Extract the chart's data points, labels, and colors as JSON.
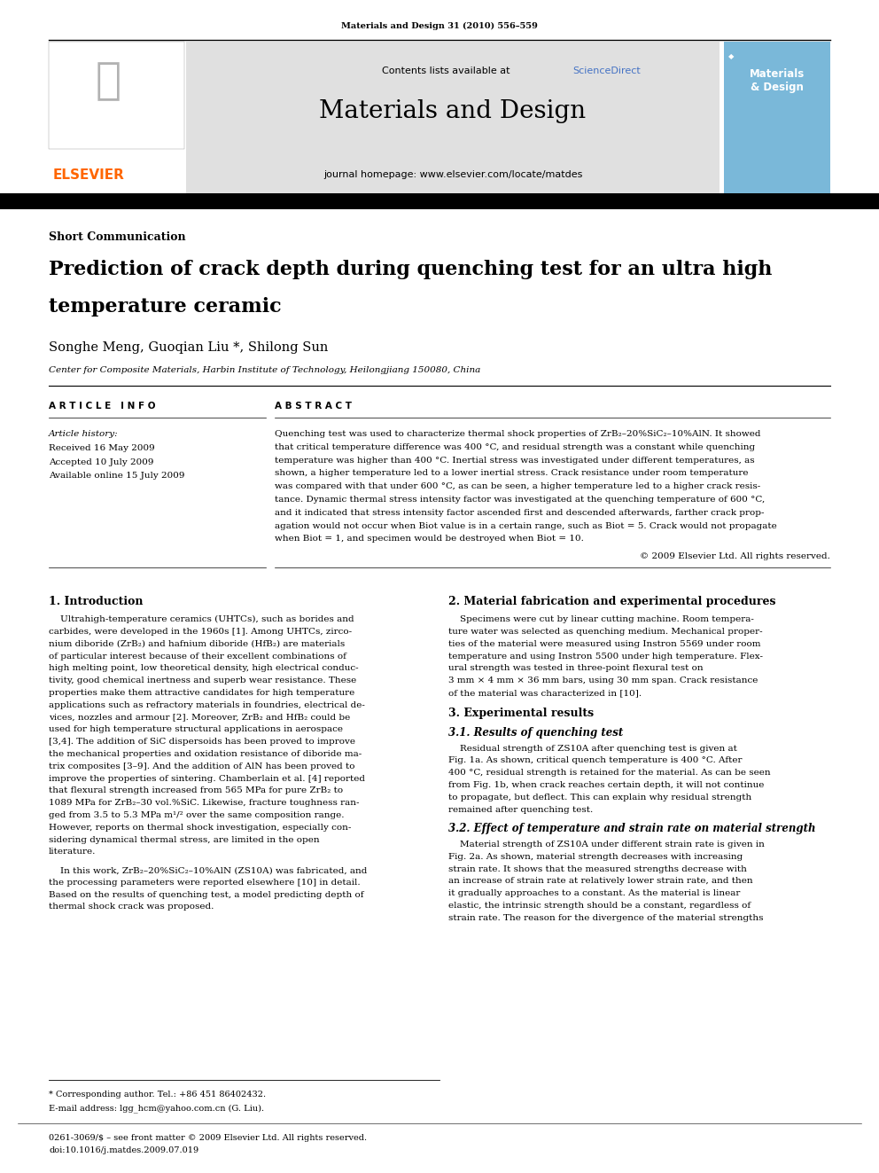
{
  "page_width": 9.92,
  "page_height": 13.23,
  "dpi": 100,
  "bg_color": "#ffffff",
  "header_journal": "Materials and Design 31 (2010) 556–559",
  "header_contents": "Contents lists available at ",
  "header_sciencedirect": "ScienceDirect",
  "header_journal_name": "Materials and Design",
  "header_homepage": "journal homepage: www.elsevier.com/locate/matdes",
  "article_type": "Short Communication",
  "title_line1": "Prediction of crack depth during quenching test for an ultra high",
  "title_line2": "temperature ceramic",
  "authors": "Songhe Meng, Guoqian Liu *, Shilong Sun",
  "affiliation": "Center for Composite Materials, Harbin Institute of Technology, Heilongjiang 150080, China",
  "article_info_header": "A R T I C L E   I N F O",
  "article_history_label": "Article history:",
  "received": "Received 16 May 2009",
  "accepted": "Accepted 10 July 2009",
  "available": "Available online 15 July 2009",
  "abstract_header": "A B S T R A C T",
  "abstract_lines": [
    "Quenching test was used to characterize thermal shock properties of ZrB₂–20%SiC₂–10%AlN. It showed",
    "that critical temperature difference was 400 °C, and residual strength was a constant while quenching",
    "temperature was higher than 400 °C. Inertial stress was investigated under different temperatures, as",
    "shown, a higher temperature led to a lower inertial stress. Crack resistance under room temperature",
    "was compared with that under 600 °C, as can be seen, a higher temperature led to a higher crack resis-",
    "tance. Dynamic thermal stress intensity factor was investigated at the quenching temperature of 600 °C,",
    "and it indicated that stress intensity factor ascended first and descended afterwards, farther crack prop-",
    "agation would not occur when Biot value is in a certain range, such as Biot = 5. Crack would not propagate",
    "when Biot = 1, and specimen would be destroyed when Biot = 10."
  ],
  "abstract_copyright": "© 2009 Elsevier Ltd. All rights reserved.",
  "section1_title": "1. Introduction",
  "sec1_lines": [
    "    Ultrahigh-temperature ceramics (UHTCs), such as borides and",
    "carbides, were developed in the 1960s [1]. Among UHTCs, zirco-",
    "nium diboride (ZrB₂) and hafnium diboride (HfB₂) are materials",
    "of particular interest because of their excellent combinations of",
    "high melting point, low theoretical density, high electrical conduc-",
    "tivity, good chemical inertness and superb wear resistance. These",
    "properties make them attractive candidates for high temperature",
    "applications such as refractory materials in foundries, electrical de-",
    "vices, nozzles and armour [2]. Moreover, ZrB₂ and HfB₂ could be",
    "used for high temperature structural applications in aerospace",
    "[3,4]. The addition of SiC dispersoids has been proved to improve",
    "the mechanical properties and oxidation resistance of diboride ma-",
    "trix composites [3–9]. And the addition of AlN has been proved to",
    "improve the properties of sintering. Chamberlain et al. [4] reported",
    "that flexural strength increased from 565 MPa for pure ZrB₂ to",
    "1089 MPa for ZrB₂–30 vol.%SiC. Likewise, fracture toughness ran-",
    "ged from 3.5 to 5.3 MPa m¹/² over the same composition range.",
    "However, reports on thermal shock investigation, especially con-",
    "sidering dynamical thermal stress, are limited in the open",
    "literature.",
    "",
    "    In this work, ZrB₂–20%SiC₂–10%AlN (ZS10A) was fabricated, and",
    "the processing parameters were reported elsewhere [10] in detail.",
    "Based on the results of quenching test, a model predicting depth of",
    "thermal shock crack was proposed."
  ],
  "section2_title": "2. Material fabrication and experimental procedures",
  "sec2_lines": [
    "    Specimens were cut by linear cutting machine. Room tempera-",
    "ture water was selected as quenching medium. Mechanical proper-",
    "ties of the material were measured using Instron 5569 under room",
    "temperature and using Instron 5500 under high temperature. Flex-",
    "ural strength was tested in three-point flexural test on",
    "3 mm × 4 mm × 36 mm bars, using 30 mm span. Crack resistance",
    "of the material was characterized in [10]."
  ],
  "section3_title": "3. Experimental results",
  "section31_title": "3.1. Results of quenching test",
  "sec31_lines": [
    "    Residual strength of ZS10A after quenching test is given at",
    "Fig. 1a. As shown, critical quench temperature is 400 °C. After",
    "400 °C, residual strength is retained for the material. As can be seen",
    "from Fig. 1b, when crack reaches certain depth, it will not continue",
    "to propagate, but deflect. This can explain why residual strength",
    "remained after quenching test."
  ],
  "section32_title": "3.2. Effect of temperature and strain rate on material strength",
  "sec32_lines": [
    "    Material strength of ZS10A under different strain rate is given in",
    "Fig. 2a. As shown, material strength decreases with increasing",
    "strain rate. It shows that the measured strengths decrease with",
    "an increase of strain rate at relatively lower strain rate, and then",
    "it gradually approaches to a constant. As the material is linear",
    "elastic, the intrinsic strength should be a constant, regardless of",
    "strain rate. The reason for the divergence of the material strengths"
  ],
  "footnote_corresponding": "* Corresponding author. Tel.: +86 451 86402432.",
  "footnote_email": "E-mail address: lgg_hcm@yahoo.com.cn (G. Liu).",
  "footnote_issn": "0261-3069/$ – see front matter © 2009 Elsevier Ltd. All rights reserved.",
  "footnote_doi": "doi:10.1016/j.matdes.2009.07.019",
  "elsevier_color": "#ff6600",
  "sciencedirect_color": "#4472c4",
  "gray_bg": "#e0e0e0",
  "cover_bg": "#7ab8d9"
}
